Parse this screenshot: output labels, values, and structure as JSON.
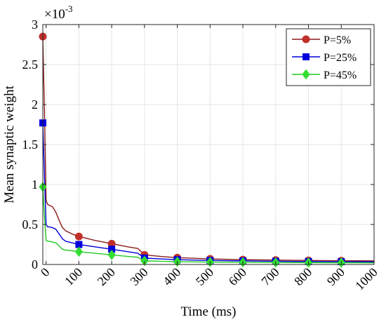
{
  "chart_data": {
    "type": "line",
    "xlabel": "Time (ms)",
    "ylabel": "Mean synaptic weight",
    "multiplier_base": "×10",
    "multiplier_exponent": "-3",
    "xlim": [
      -10,
      1000
    ],
    "ylim": [
      0,
      3
    ],
    "xticks": [
      0,
      100,
      200,
      300,
      400,
      500,
      600,
      700,
      800,
      900,
      1000
    ],
    "yticks": [
      0,
      0.5,
      1,
      1.5,
      2,
      2.5,
      3
    ],
    "xtick_labels": [
      "0",
      "100",
      "200",
      "300",
      "400",
      "500",
      "600",
      "700",
      "800",
      "900",
      "1000"
    ],
    "ytick_labels": [
      "0",
      "0.5",
      "1",
      "1.5",
      "2",
      "2.5",
      "3"
    ],
    "grid": true,
    "legend_position": "top-right",
    "series": [
      {
        "name": "P=5%",
        "color": "#8b1a1a",
        "marker_color": "#c0302a",
        "marker": "circle",
        "x": [
          -10,
          -5,
          0,
          5,
          10,
          20,
          30,
          40,
          50,
          60,
          80,
          100,
          150,
          200,
          250,
          280,
          300,
          350,
          400,
          500,
          600,
          700,
          800,
          900,
          1000
        ],
        "y": [
          2.85,
          1.9,
          0.8,
          0.75,
          0.74,
          0.72,
          0.65,
          0.55,
          0.46,
          0.42,
          0.38,
          0.35,
          0.3,
          0.26,
          0.22,
          0.2,
          0.12,
          0.1,
          0.085,
          0.07,
          0.06,
          0.055,
          0.05,
          0.047,
          0.045
        ],
        "marker_x": [
          -10,
          100,
          200,
          300,
          400,
          500,
          600,
          700,
          800,
          900
        ],
        "marker_y": [
          2.85,
          0.35,
          0.26,
          0.12,
          0.085,
          0.07,
          0.06,
          0.055,
          0.05,
          0.047
        ]
      },
      {
        "name": "P=25%",
        "color": "#0000dd",
        "marker_color": "#0000dd",
        "marker": "square",
        "x": [
          -10,
          -5,
          0,
          5,
          10,
          20,
          30,
          40,
          50,
          60,
          80,
          100,
          150,
          200,
          250,
          280,
          300,
          350,
          400,
          500,
          600,
          700,
          800,
          900,
          1000
        ],
        "y": [
          1.77,
          1.1,
          0.5,
          0.47,
          0.47,
          0.46,
          0.44,
          0.38,
          0.32,
          0.29,
          0.27,
          0.25,
          0.22,
          0.19,
          0.16,
          0.14,
          0.08,
          0.07,
          0.06,
          0.05,
          0.045,
          0.04,
          0.037,
          0.035,
          0.033
        ],
        "marker_x": [
          -10,
          100,
          200,
          300,
          400,
          500,
          600,
          700,
          800,
          900
        ],
        "marker_y": [
          1.77,
          0.25,
          0.19,
          0.08,
          0.06,
          0.05,
          0.045,
          0.04,
          0.037,
          0.035
        ]
      },
      {
        "name": "P=45%",
        "color": "#22cc22",
        "marker_color": "#33dd33",
        "marker": "diamond",
        "x": [
          -10,
          -5,
          0,
          5,
          10,
          20,
          30,
          40,
          50,
          60,
          80,
          100,
          150,
          200,
          250,
          280,
          300,
          350,
          400,
          500,
          600,
          700,
          800,
          900,
          1000
        ],
        "y": [
          0.97,
          0.6,
          0.3,
          0.29,
          0.29,
          0.28,
          0.27,
          0.23,
          0.19,
          0.18,
          0.17,
          0.16,
          0.14,
          0.12,
          0.1,
          0.09,
          0.045,
          0.04,
          0.035,
          0.03,
          0.027,
          0.025,
          0.023,
          0.022,
          0.02
        ],
        "marker_x": [
          -10,
          100,
          200,
          300,
          400,
          500,
          600,
          700,
          800,
          900
        ],
        "marker_y": [
          0.97,
          0.16,
          0.12,
          0.045,
          0.035,
          0.03,
          0.027,
          0.025,
          0.023,
          0.022
        ]
      }
    ]
  }
}
